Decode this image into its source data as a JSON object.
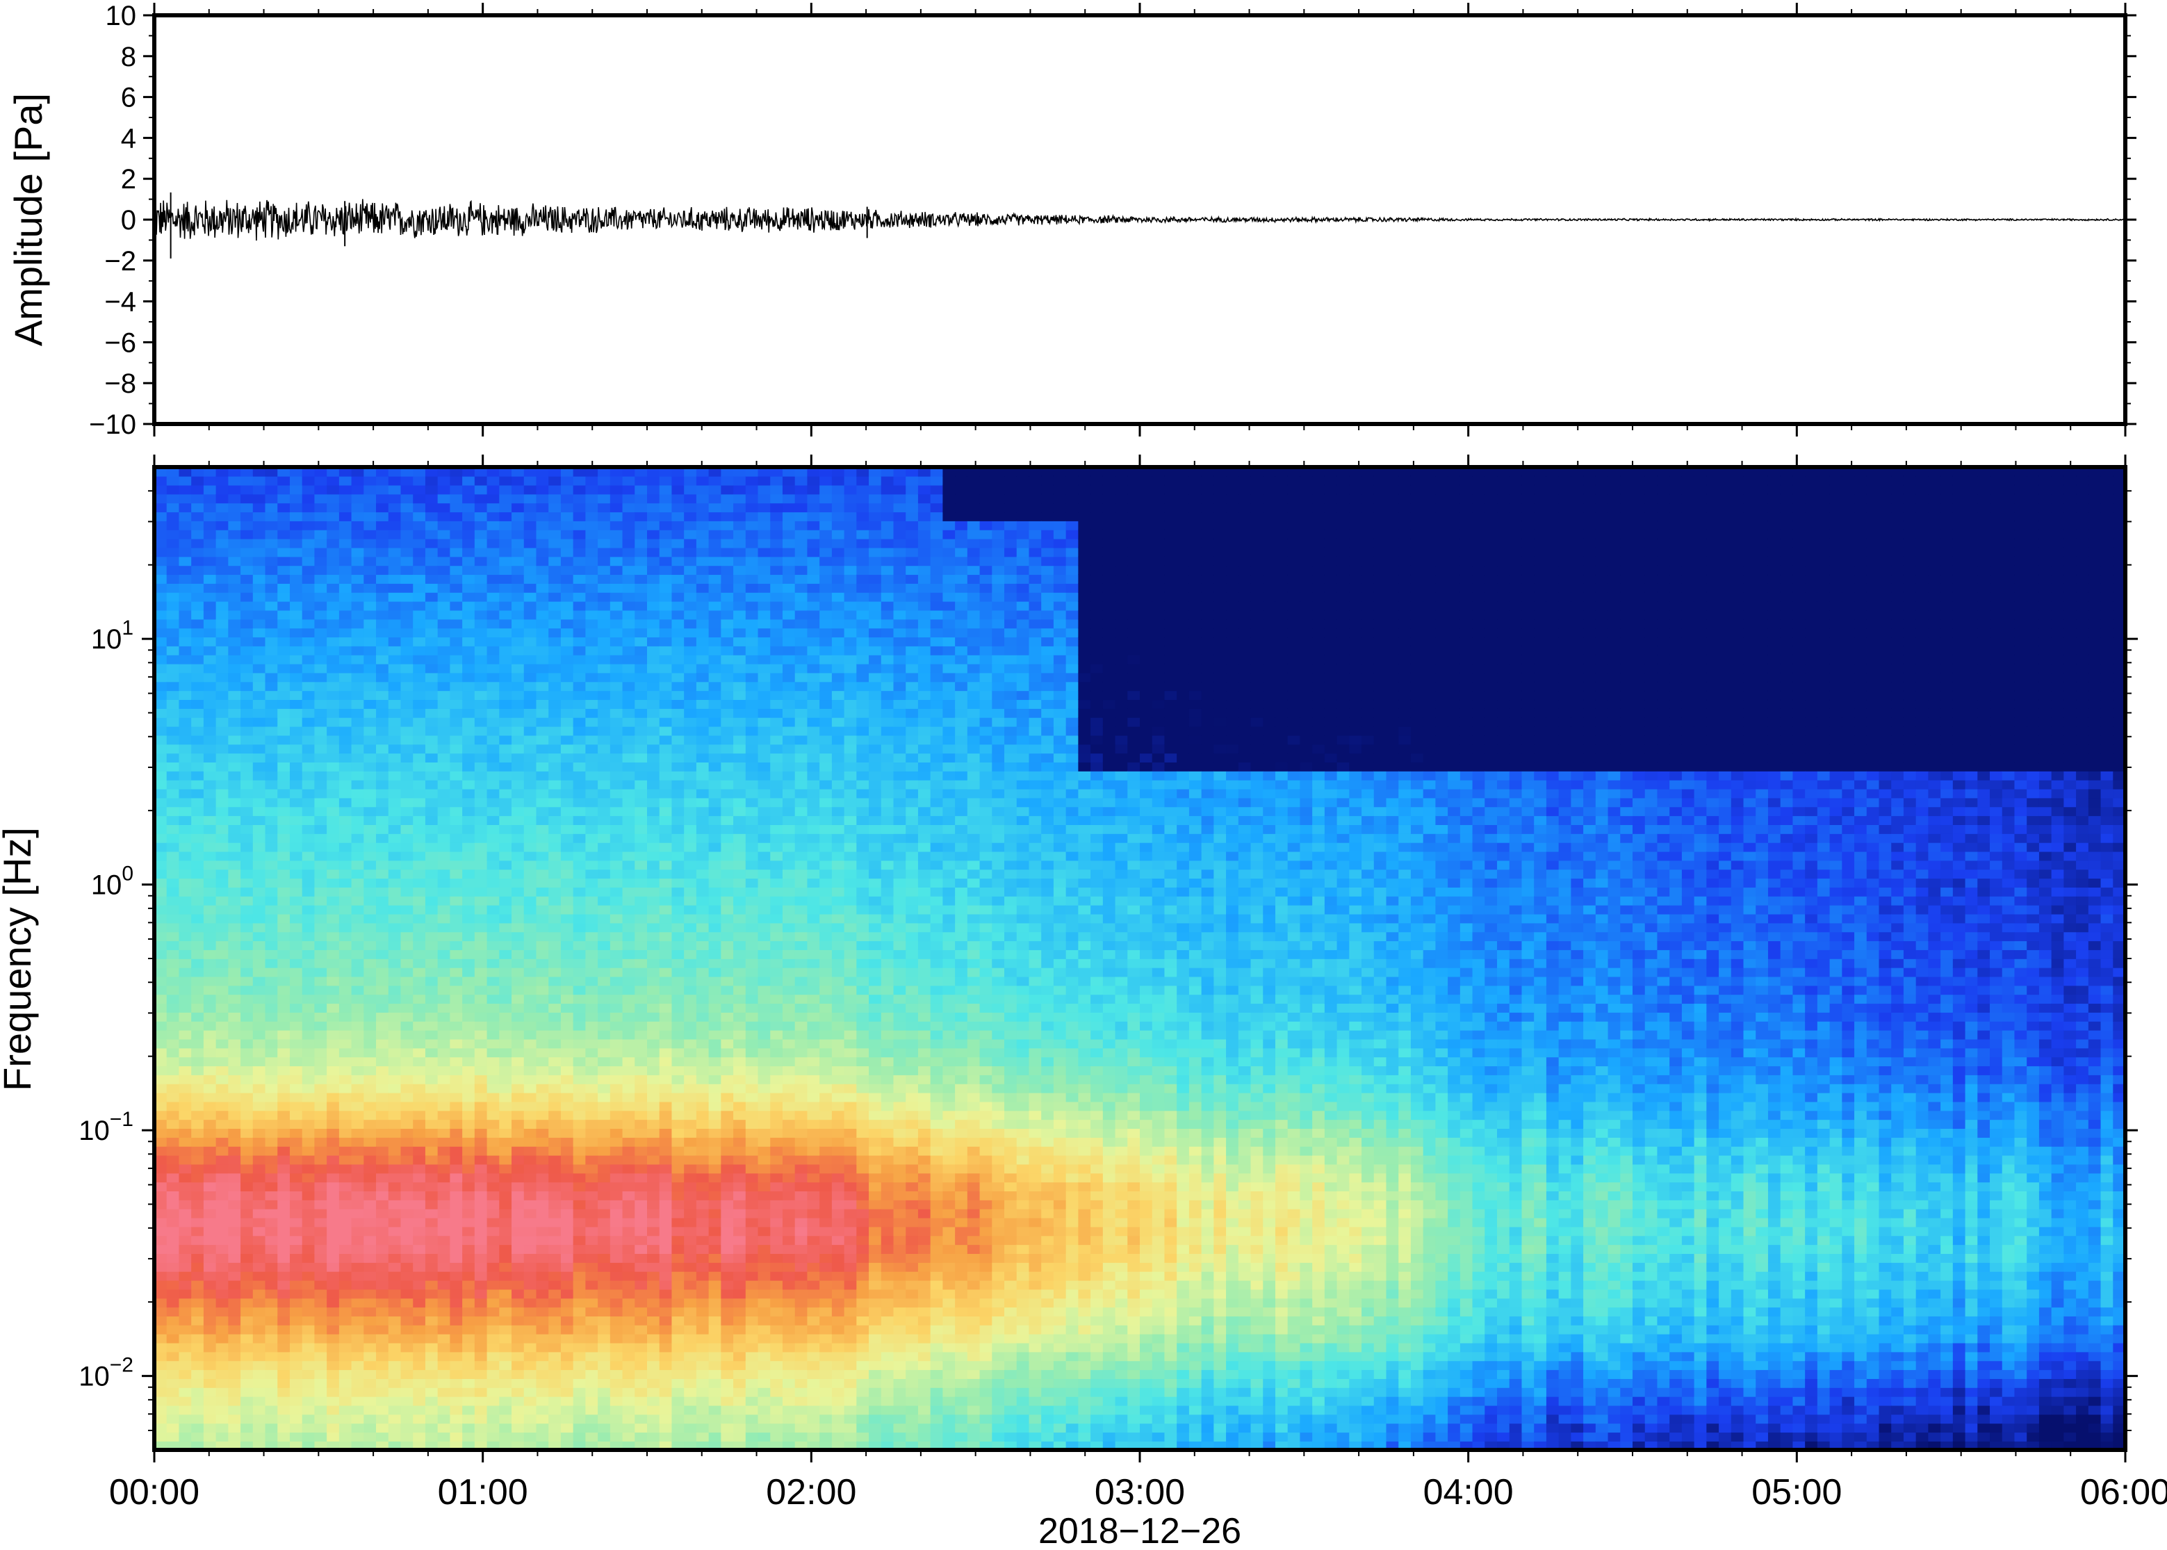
{
  "chart_data": [
    {
      "type": "line",
      "title": "",
      "ylabel": "Amplitude [Pa]",
      "ylim": [
        -10,
        10
      ],
      "yticks": [
        10,
        8,
        6,
        4,
        2,
        0,
        -2,
        -4,
        -6,
        -8,
        -10
      ],
      "ytick_labels": [
        "10",
        "8",
        "6",
        "4",
        "2",
        "0",
        "−2",
        "−4",
        "−6",
        "−8",
        "−10"
      ],
      "xlim_hours": [
        0,
        6
      ],
      "series": [
        {
          "line_color": "#000000",
          "envelope": [
            {
              "hour": 0.0,
              "amp": 1.0
            },
            {
              "hour": 0.5,
              "amp": 0.9
            },
            {
              "hour": 1.0,
              "amp": 0.8
            },
            {
              "hour": 1.5,
              "amp": 0.55
            },
            {
              "hour": 2.0,
              "amp": 0.6
            },
            {
              "hour": 2.3,
              "amp": 0.4
            },
            {
              "hour": 2.8,
              "amp": 0.2
            },
            {
              "hour": 3.2,
              "amp": 0.12
            },
            {
              "hour": 3.8,
              "amp": 0.1
            },
            {
              "hour": 4.0,
              "amp": 0.05
            },
            {
              "hour": 6.0,
              "amp": 0.04
            }
          ],
          "spikes": [
            {
              "hour": 0.05,
              "amp": 1.9
            },
            {
              "hour": 0.58,
              "amp": 1.3
            },
            {
              "hour": 2.17,
              "amp": 0.9
            }
          ]
        }
      ]
    },
    {
      "type": "heatmap",
      "title": "",
      "ylabel": "Frequency [Hz]",
      "xlabel": "2018−12−26",
      "x_tick_labels": [
        "00:00",
        "01:00",
        "02:00",
        "03:00",
        "04:00",
        "05:00",
        "06:00"
      ],
      "y_scale": "log",
      "ylim_hz": [
        0.005,
        50
      ],
      "y_decades": [
        {
          "base": "10",
          "exp": "1"
        },
        {
          "base": "10",
          "exp": "0"
        },
        {
          "base": "10",
          "exp": "−1"
        },
        {
          "base": "10",
          "exp": "−2"
        }
      ],
      "colormap": [
        "#06106e",
        "#1a3ff0",
        "#1aa8ff",
        "#4de6e6",
        "#99ecb0",
        "#e8f59a",
        "#fbd567",
        "#f7a245",
        "#ef5a4a",
        "#f77a8a"
      ],
      "intensity_profiles": [
        {
          "hour": 0.0,
          "level": 1.0
        },
        {
          "hour": 1.0,
          "level": 1.0
        },
        {
          "hour": 2.0,
          "level": 0.95
        },
        {
          "hour": 2.4,
          "level": 0.8
        },
        {
          "hour": 2.8,
          "level": 0.7
        },
        {
          "hour": 3.2,
          "level": 0.55
        },
        {
          "hour": 3.7,
          "level": 0.5
        },
        {
          "hour": 4.0,
          "level": 0.3
        },
        {
          "hour": 6.0,
          "level": 0.28
        }
      ]
    }
  ]
}
